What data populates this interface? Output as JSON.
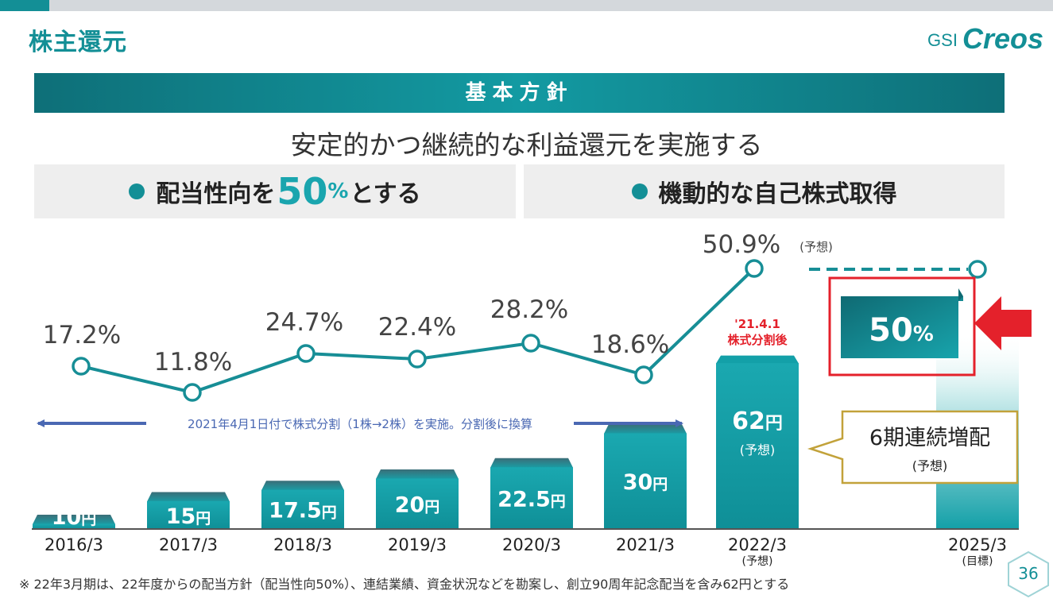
{
  "header": {
    "title": "株主還元",
    "logo_prefix": "GSI",
    "logo_name": "Creos"
  },
  "policy": {
    "heading": "基本方針",
    "subtitle": "安定的かつ継続的な利益還元を実施する",
    "left_panel": {
      "prefix": "配当性向を",
      "value": "50",
      "unit": "%",
      "suffix": "とする"
    },
    "right_panel": "機動的な自己株式取得"
  },
  "colors": {
    "accent": "#138f96",
    "bar": "#14a0a8",
    "line": "#178e96",
    "arrow": "#4a68b3",
    "highlight_red": "#e4212b",
    "callout_gold": "#c2a23a"
  },
  "chart_data": [
    {
      "type": "bar",
      "series_label": "1株当たり配当金",
      "categories": [
        "2016/3",
        "2017/3",
        "2018/3",
        "2019/3",
        "2020/3",
        "2021/3",
        "2022/3",
        "2025/3"
      ],
      "category_notes": [
        "",
        "",
        "",
        "",
        "",
        "",
        "(予想)",
        "(目標)"
      ],
      "values": [
        10,
        15,
        17.5,
        20,
        22.5,
        30,
        62,
        null
      ],
      "value_labels": [
        "10円",
        "15円",
        "17.5円",
        "20円",
        "22.5円",
        "30円",
        "62円",
        ""
      ],
      "value_notes": [
        "",
        "",
        "",
        "",
        "",
        "",
        "(予想)",
        ""
      ]
    },
    {
      "type": "line",
      "series_label": "配当性向",
      "categories": [
        "2016/3",
        "2017/3",
        "2018/3",
        "2019/3",
        "2020/3",
        "2021/3",
        "2022/3",
        "2025/3"
      ],
      "values": [
        17.2,
        11.8,
        24.7,
        22.4,
        28.2,
        18.6,
        50.9,
        50
      ],
      "value_labels": [
        "17.2%",
        "11.8%",
        "24.7%",
        "22.4%",
        "28.2%",
        "18.6%",
        "50.9%",
        "50%"
      ],
      "value_notes": [
        "",
        "",
        "",
        "",
        "",
        "",
        "(予想)",
        ""
      ]
    }
  ],
  "annotations": {
    "split_arrow_text": "2021年4月1日付で株式分割（1株→2株）を実施。分割後に換算",
    "split_date": "'21.4.1",
    "split_label": "株式分割後",
    "callout_main": "6期連続増配",
    "callout_note": "(予想)",
    "target_value": "50",
    "target_unit": "%"
  },
  "footnote": "※ 22年3月期は、22年度からの配当方針（配当性向50%）、連結業績、資金状況などを勘案し、創立90周年記念配当を含み62円とする",
  "page_number": "36"
}
